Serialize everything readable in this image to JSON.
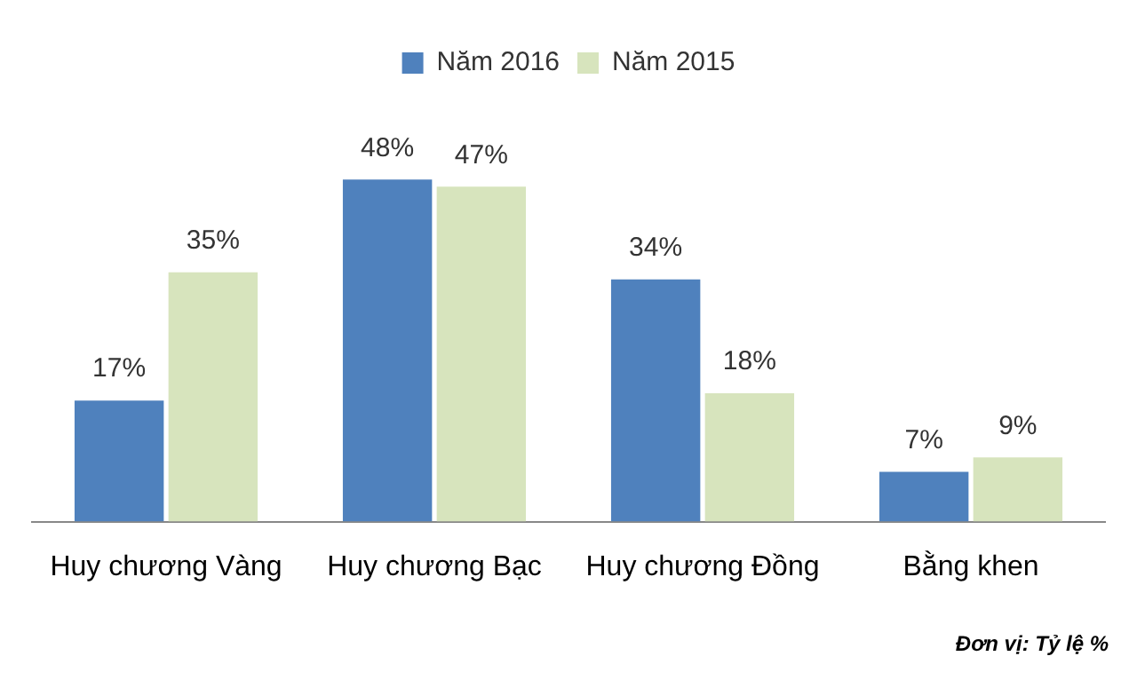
{
  "chart_data": {
    "type": "bar",
    "categories": [
      "Huy chương Vàng",
      "Huy chương Bạc",
      "Huy chương Đồng",
      "Bằng khen"
    ],
    "series": [
      {
        "name": "Năm 2016",
        "color": "#4f81bd",
        "values": [
          17,
          48,
          34,
          7
        ],
        "value_labels": [
          "17%",
          "48%",
          "34%",
          "7%"
        ]
      },
      {
        "name": "Năm 2015",
        "color": "#d7e4bd",
        "values": [
          35,
          47,
          18,
          9
        ],
        "value_labels": [
          "35%",
          "47%",
          "18%",
          "9%"
        ]
      }
    ],
    "legend": "top",
    "grid": false,
    "annotations": [
      "Đơn vị: Tỷ lệ %"
    ]
  }
}
